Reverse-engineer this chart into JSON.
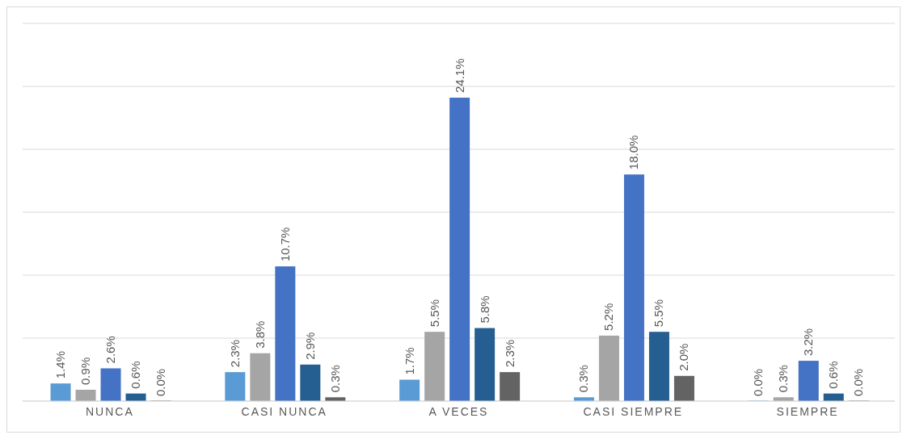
{
  "chart_data": {
    "type": "bar",
    "categories": [
      "NUNCA",
      "CASI NUNCA",
      "A VECES",
      "CASI SIEMPRE",
      "SIEMPRE"
    ],
    "series": [
      {
        "color": "#5b9bd5",
        "values": [
          1.4,
          2.3,
          1.7,
          0.3,
          0.0
        ],
        "value_labels": [
          "1.4%",
          "2.3%",
          "1.7%",
          "0.3%",
          "0.0%"
        ]
      },
      {
        "color": "#a5a5a5",
        "values": [
          0.9,
          3.8,
          5.5,
          5.2,
          0.3
        ],
        "value_labels": [
          "0.9%",
          "3.8%",
          "5.5%",
          "5.2%",
          "0.3%"
        ]
      },
      {
        "color": "#4472c4",
        "values": [
          2.6,
          10.7,
          24.1,
          18.0,
          3.2
        ],
        "value_labels": [
          "2.6%",
          "10.7%",
          "24.1%",
          "18.0%",
          "3.2%"
        ]
      },
      {
        "color": "#255e91",
        "values": [
          0.6,
          2.9,
          5.8,
          5.5,
          0.6
        ],
        "value_labels": [
          "0.6%",
          "2.9%",
          "5.8%",
          "5.5%",
          "0.6%"
        ]
      },
      {
        "color": "#636363",
        "values": [
          0.0,
          0.3,
          2.3,
          2.0,
          0.0
        ],
        "value_labels": [
          "0.0%",
          "0.3%",
          "2.3%",
          "2.0%",
          "0.0%"
        ]
      }
    ],
    "ylim": [
      0,
      30
    ],
    "yticks": [
      {
        "value": 0,
        "label": null
      },
      {
        "value": 5,
        "label": null
      },
      {
        "value": 10,
        "label": null
      },
      {
        "value": 15,
        "label": null
      },
      {
        "value": 20,
        "label": null
      },
      {
        "value": 25,
        "label": null
      },
      {
        "value": 30,
        "label": null
      }
    ],
    "tick_labels": "x",
    "grid": "y",
    "legend": false
  }
}
